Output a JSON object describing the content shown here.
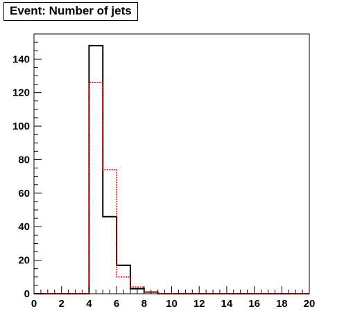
{
  "chart_data": {
    "type": "histogram",
    "title": "Event: Number of jets",
    "xlim": [
      0,
      20
    ],
    "ylim": [
      0,
      155
    ],
    "x_ticks": [
      0,
      2,
      4,
      6,
      8,
      10,
      12,
      14,
      16,
      18,
      20
    ],
    "y_ticks": [
      0,
      20,
      40,
      60,
      80,
      100,
      120,
      140
    ],
    "bin_edges": [
      0,
      1,
      2,
      3,
      4,
      5,
      6,
      7,
      8,
      9,
      10,
      11,
      12,
      13,
      14,
      15,
      16,
      17,
      18,
      19,
      20
    ],
    "series": [
      {
        "color": "#000000",
        "style": "solid",
        "values": [
          0,
          0,
          0,
          0,
          148,
          46,
          17,
          3,
          1,
          0,
          0,
          0,
          0,
          0,
          0,
          0,
          0,
          0,
          0,
          0
        ]
      },
      {
        "color": "#ff0000",
        "style": "dotted",
        "values": [
          0,
          0,
          0,
          0,
          126,
          74,
          10,
          4,
          1,
          0,
          0,
          0,
          0,
          0,
          0,
          0,
          0,
          0,
          0,
          0
        ]
      }
    ],
    "grid": false,
    "legend": "none"
  }
}
